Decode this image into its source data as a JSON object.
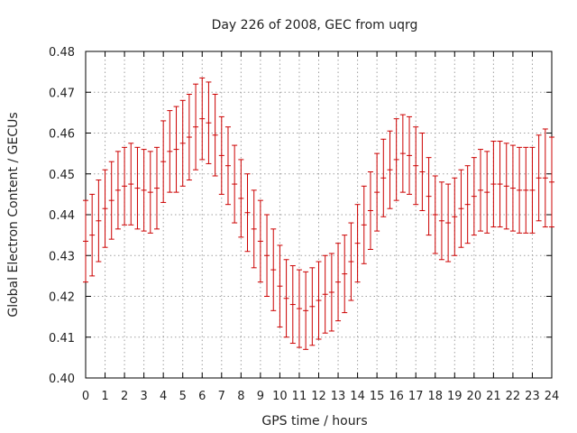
{
  "chart_data": {
    "type": "scatter",
    "style": "errorbars",
    "title": "Day 226 of 2008, GEC from uqrg",
    "xlabel": "GPS time / hours",
    "ylabel": "Global Electron Content / GECUs",
    "xlim": [
      0,
      24
    ],
    "ylim": [
      0.4,
      0.48
    ],
    "xticks": [
      0,
      1,
      2,
      3,
      4,
      5,
      6,
      7,
      8,
      9,
      10,
      11,
      12,
      13,
      14,
      15,
      16,
      17,
      18,
      19,
      20,
      21,
      22,
      23,
      24
    ],
    "yticks": [
      0.4,
      0.41,
      0.42,
      0.43,
      0.44,
      0.45,
      0.46,
      0.47,
      0.48
    ],
    "grid": true,
    "color": "#cc0000",
    "series": [
      {
        "x": [
          0,
          0.333,
          0.667,
          1,
          1.333,
          1.667,
          2,
          2.333,
          2.667,
          3,
          3.333,
          3.667,
          4,
          4.333,
          4.667,
          5,
          5.333,
          5.667,
          6,
          6.333,
          6.667,
          7,
          7.333,
          7.667,
          8,
          8.333,
          8.667,
          9,
          9.333,
          9.667,
          10,
          10.333,
          10.667,
          11,
          11.333,
          11.667,
          12,
          12.333,
          12.667,
          13,
          13.333,
          13.667,
          14,
          14.333,
          14.667,
          15,
          15.333,
          15.667,
          16,
          16.333,
          16.667,
          17,
          17.333,
          17.667,
          18,
          18.333,
          18.667,
          19,
          19.333,
          19.667,
          20,
          20.333,
          20.667,
          21,
          21.333,
          21.667,
          22,
          22.333,
          22.667,
          23,
          23.333,
          23.667,
          24
        ],
        "y": [
          0.4335,
          0.435,
          0.4385,
          0.4415,
          0.4435,
          0.446,
          0.447,
          0.4475,
          0.4465,
          0.446,
          0.4455,
          0.4465,
          0.453,
          0.4555,
          0.456,
          0.4575,
          0.459,
          0.4615,
          0.4635,
          0.4625,
          0.4595,
          0.4545,
          0.452,
          0.4475,
          0.444,
          0.4405,
          0.4365,
          0.4335,
          0.43,
          0.4265,
          0.4225,
          0.4195,
          0.418,
          0.417,
          0.4165,
          0.4175,
          0.419,
          0.4205,
          0.421,
          0.4235,
          0.4255,
          0.4285,
          0.433,
          0.4375,
          0.441,
          0.4455,
          0.449,
          0.451,
          0.4535,
          0.455,
          0.4545,
          0.452,
          0.4505,
          0.4445,
          0.44,
          0.4385,
          0.438,
          0.4395,
          0.4415,
          0.4425,
          0.4445,
          0.446,
          0.4455,
          0.4475,
          0.4475,
          0.447,
          0.4465,
          0.446,
          0.446,
          0.446,
          0.449,
          0.449,
          0.448
        ],
        "err": [
          0.01,
          0.01,
          0.01,
          0.0095,
          0.0095,
          0.0095,
          0.0095,
          0.01,
          0.01,
          0.01,
          0.01,
          0.01,
          0.01,
          0.01,
          0.0105,
          0.0105,
          0.0105,
          0.0105,
          0.01,
          0.01,
          0.01,
          0.0095,
          0.0095,
          0.0095,
          0.0095,
          0.0095,
          0.0095,
          0.01,
          0.01,
          0.01,
          0.01,
          0.0095,
          0.0095,
          0.0095,
          0.0095,
          0.0095,
          0.0095,
          0.0095,
          0.0095,
          0.0095,
          0.0095,
          0.0095,
          0.0095,
          0.0095,
          0.0095,
          0.0095,
          0.0095,
          0.0095,
          0.01,
          0.0095,
          0.0095,
          0.0095,
          0.0095,
          0.0095,
          0.0095,
          0.0095,
          0.0095,
          0.0095,
          0.0095,
          0.0095,
          0.0095,
          0.01,
          0.01,
          0.0105,
          0.0105,
          0.0105,
          0.0105,
          0.0105,
          0.0105,
          0.0105,
          0.0105,
          0.012,
          0.011
        ]
      }
    ]
  }
}
